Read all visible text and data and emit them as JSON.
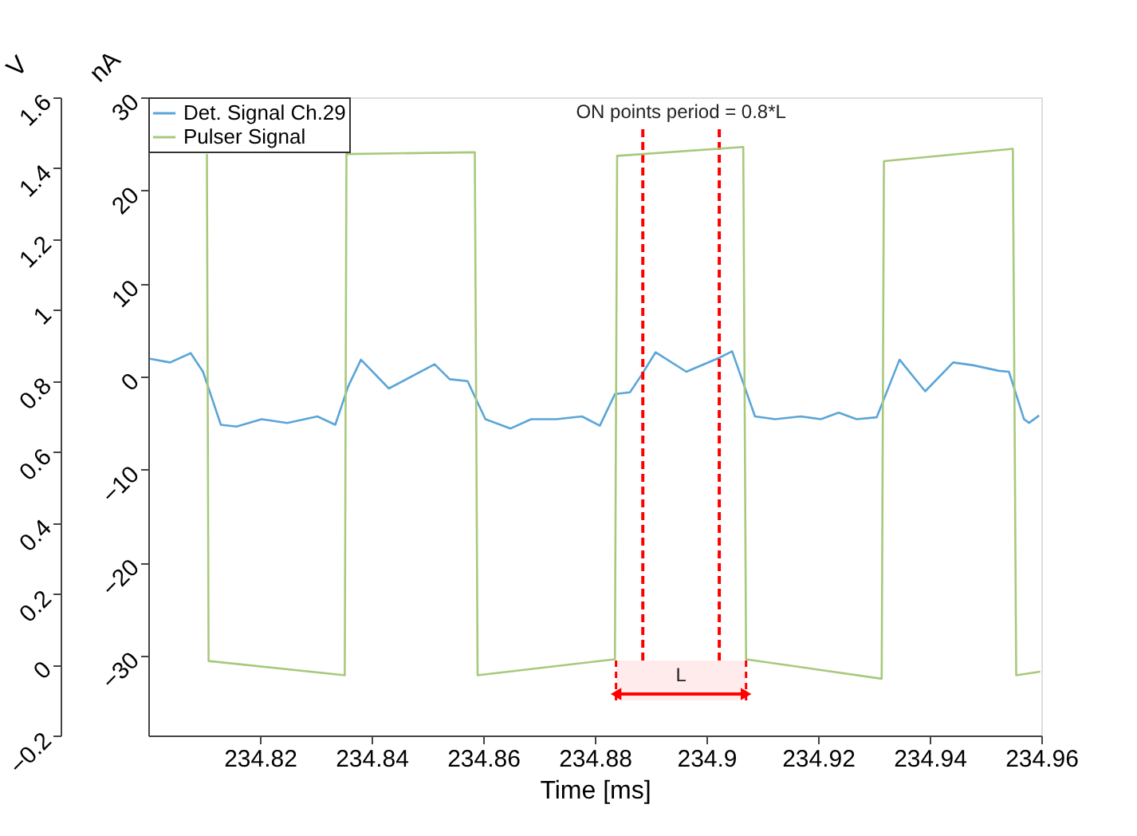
{
  "chart_data": {
    "type": "line",
    "xlabel": "Time [ms]",
    "ylabel": "nA",
    "y2label": "V",
    "xlim": [
      234.8,
      234.96
    ],
    "xticks": [
      234.82,
      234.84,
      234.86,
      234.88,
      234.9,
      234.92,
      234.94,
      234.96
    ],
    "ylim": [
      -38.6,
      30
    ],
    "yticks": [
      -30,
      -20,
      -10,
      0,
      10,
      20,
      30
    ],
    "y2lim": [
      -0.2,
      1.6
    ],
    "y2ticks": [
      -0.2,
      0,
      0.2,
      0.4,
      0.6,
      0.8,
      1,
      1.2,
      1.4,
      1.6
    ],
    "series": [
      {
        "name": "Det. Signal Ch.29",
        "color": "#5aa5d8",
        "x": [
          234.8003,
          234.8039,
          234.8076,
          234.8098,
          234.813,
          234.8158,
          234.8203,
          234.8249,
          234.8303,
          234.8335,
          234.8358,
          234.8381,
          234.8431,
          234.8513,
          234.854,
          234.8572,
          234.8604,
          234.8649,
          234.8686,
          234.8731,
          234.8777,
          234.8809,
          234.8836,
          234.8863,
          234.8882,
          234.8909,
          234.8964,
          234.9023,
          234.9046,
          234.9087,
          234.9123,
          234.9169,
          234.9205,
          234.9237,
          234.9269,
          234.9305,
          234.9346,
          234.9392,
          234.9442,
          234.9478,
          234.9524,
          234.9542,
          234.9569,
          234.9578,
          234.9596
        ],
        "values": [
          1.9,
          1.5,
          2.5,
          0.5,
          -5.2,
          -5.4,
          -4.6,
          -5,
          -4.3,
          -5.2,
          -1.1,
          1.8,
          -1.3,
          1.3,
          -0.3,
          -0.5,
          -4.6,
          -5.6,
          -4.6,
          -4.6,
          -4.3,
          -5.3,
          -1.9,
          -1.7,
          0,
          2.6,
          0.5,
          2,
          2.7,
          -4.3,
          -4.6,
          -4.3,
          -4.6,
          -3.9,
          -4.6,
          -4.4,
          1.8,
          -1.6,
          1.5,
          1.2,
          0.6,
          0.5,
          -4.6,
          -5,
          -4.2
        ]
      },
      {
        "name": "Pulser Signal",
        "color": "#a8c97c",
        "axis": "y2",
        "x": [
          234.8105,
          234.8108,
          234.8352,
          234.8355,
          234.8585,
          234.859,
          234.8836,
          234.884,
          234.9066,
          234.9071,
          234.9314,
          234.9318,
          234.9549,
          234.9555,
          234.9598
        ],
        "values": [
          1.44,
          0.01,
          -0.03,
          1.44,
          1.445,
          -0.03,
          0.015,
          1.435,
          1.46,
          0.015,
          -0.04,
          1.42,
          1.455,
          -0.03,
          -0.02
        ]
      }
    ],
    "ref_lines": [
      {
        "axis": "x",
        "value": 234.8886,
        "color": "#ff0000",
        "line_style": "dashed"
      },
      {
        "axis": "x",
        "value": 234.9023,
        "color": "#ff0000",
        "line_style": "dashed"
      }
    ],
    "bands": [
      {
        "axis": "x",
        "from": 234.8838,
        "to": 234.9071,
        "label": "L",
        "color": "#ff0000"
      }
    ],
    "annotations": [
      "ON points period = 0.8*L"
    ],
    "legend": "top left",
    "grid": false,
    "line_style": "solid",
    "marker": "none"
  }
}
